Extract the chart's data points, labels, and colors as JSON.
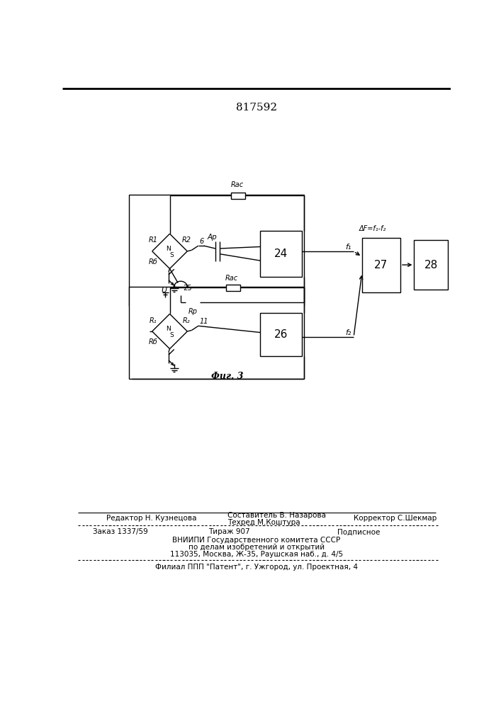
{
  "patent_number": "817592",
  "background_color": "#ffffff",
  "line_color": "#000000",
  "fig_label": "Фиг. 3",
  "footer_editor": "Редактор Н. Кузнецова",
  "footer_comp1": "Составитель В. Назарова",
  "footer_comp2": "Техред М.Коштура",
  "footer_corr": "Корректор С.Шекмар",
  "footer_order": "Заказ 1337/59",
  "footer_tirazh": "Тираж 907",
  "footer_podp": "Подписное",
  "footer_vniip": "ВНИИПИ Государственного комитета СССР",
  "footer_po": "по делам изобретений и открытий",
  "footer_addr": "113035, Москва, Ж-35, Раушская наб., д. 4/5",
  "footer_filial": "Филиал ППП \"Патент\", г. Ужгород, ул. Проектная, 4"
}
